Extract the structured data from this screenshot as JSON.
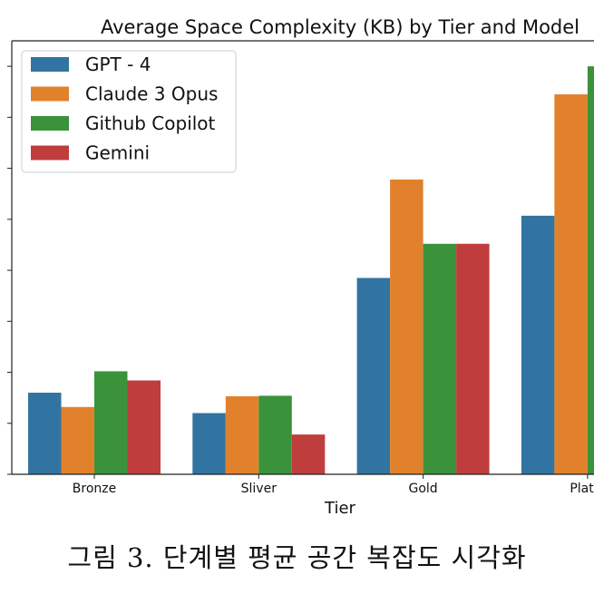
{
  "chart_data": {
    "type": "bar",
    "title": "Average Space Complexity (KB) by Tier and Model",
    "xlabel": "Tier",
    "ylabel": "",
    "categories": [
      "Bronze",
      "Sliver",
      "Gold",
      "Platinum"
    ],
    "visible_category_labels": [
      "Bronze",
      "Sliver",
      "Gold",
      "Platin"
    ],
    "ylim": [
      0,
      8.5
    ],
    "yticks": [
      0,
      1,
      2,
      3,
      4,
      5,
      6,
      7,
      8
    ],
    "series": [
      {
        "name": "GPT - 4",
        "color": "#3274a1",
        "values": [
          1.6,
          1.2,
          3.85,
          5.07
        ]
      },
      {
        "name": "Claude 3 Opus",
        "color": "#e1812c",
        "values": [
          1.32,
          1.53,
          5.78,
          7.45
        ]
      },
      {
        "name": "Github Copilot",
        "color": "#3a923a",
        "values": [
          2.02,
          1.54,
          4.52,
          8.0
        ]
      },
      {
        "name": "Gemini",
        "color": "#c03d3e",
        "values": [
          1.84,
          0.78,
          4.52,
          null
        ]
      }
    ],
    "legend_position": "top-left",
    "grid": false
  },
  "caption": "그림 3. 단계별 평균 공간 복잡도 시각화"
}
